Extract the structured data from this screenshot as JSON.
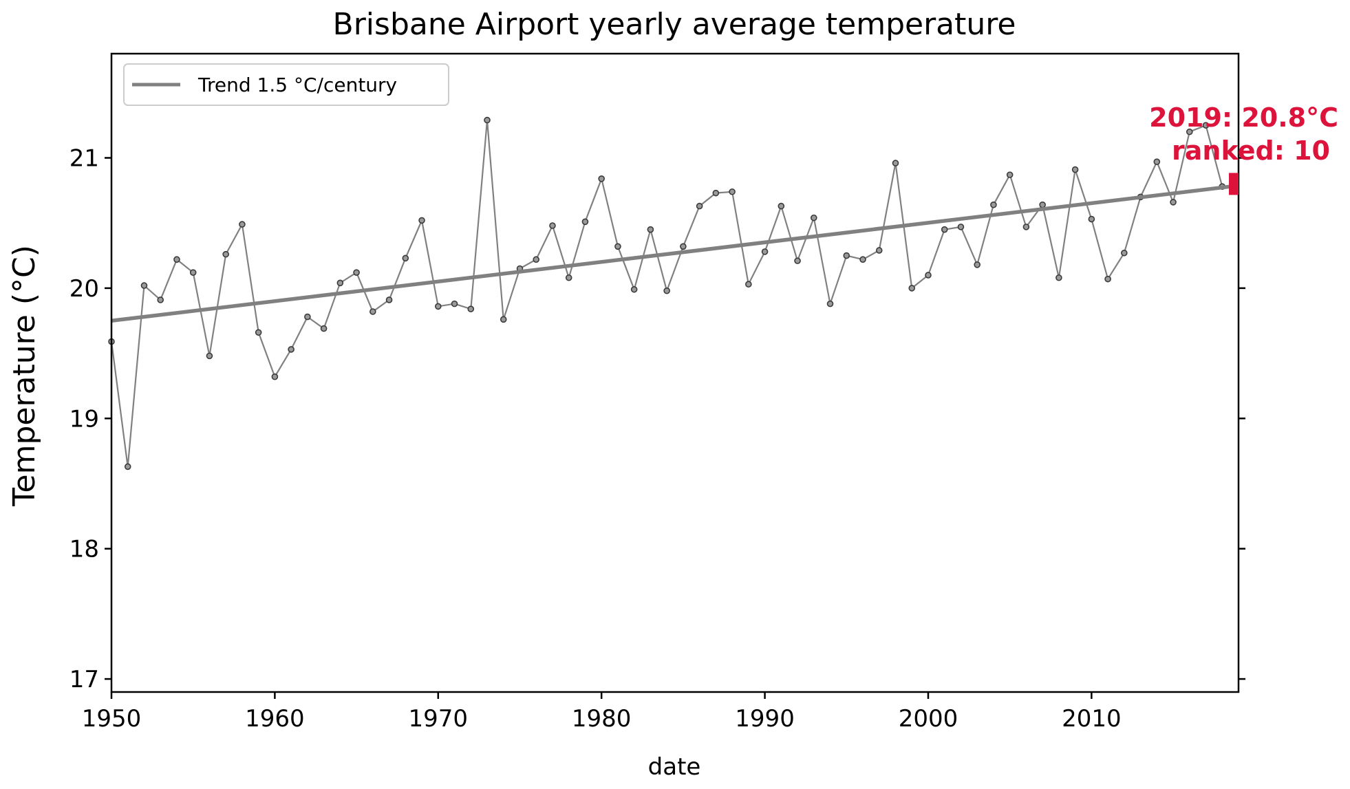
{
  "chart_data": {
    "type": "line",
    "title": "Brisbane Airport yearly average temperature",
    "xlabel": "date",
    "ylabel": "Temperature (°C)",
    "xlim": [
      1950,
      2019
    ],
    "ylim": [
      16.9,
      21.8
    ],
    "x_ticks": [
      1950,
      1960,
      1970,
      1980,
      1990,
      2000,
      2010
    ],
    "y_ticks": [
      17,
      18,
      19,
      20,
      21
    ],
    "legend": {
      "location": "upper left",
      "entries": [
        "Trend 1.5 °C/century"
      ]
    },
    "series": [
      {
        "x": [
          1950,
          1951,
          1952,
          1953,
          1954,
          1955,
          1956,
          1957,
          1958,
          1959,
          1960,
          1961,
          1962,
          1963,
          1964,
          1965,
          1966,
          1967,
          1968,
          1969,
          1970,
          1971,
          1972,
          1973,
          1974,
          1975,
          1976,
          1977,
          1978,
          1979,
          1980,
          1981,
          1982,
          1983,
          1984,
          1985,
          1986,
          1987,
          1988,
          1989,
          1990,
          1991,
          1992,
          1993,
          1994,
          1995,
          1996,
          1997,
          1998,
          1999,
          2000,
          2001,
          2002,
          2003,
          2004,
          2005,
          2006,
          2007,
          2008,
          2009,
          2010,
          2011,
          2012,
          2013,
          2014,
          2015,
          2016,
          2017,
          2018
        ],
        "values": [
          19.59,
          18.63,
          20.02,
          19.91,
          20.22,
          20.12,
          19.48,
          20.26,
          20.49,
          19.66,
          19.32,
          19.53,
          19.78,
          19.69,
          20.04,
          20.12,
          19.82,
          19.91,
          20.23,
          20.52,
          19.86,
          19.88,
          19.84,
          21.29,
          19.76,
          20.15,
          20.22,
          20.48,
          20.08,
          20.51,
          20.84,
          20.32,
          19.99,
          20.45,
          19.98,
          20.32,
          20.63,
          20.73,
          20.74,
          20.03,
          20.28,
          20.63,
          20.21,
          20.54,
          19.88,
          20.25,
          20.22,
          20.29,
          20.96,
          20.0,
          20.1,
          20.45,
          20.47,
          20.18,
          20.64,
          20.87,
          20.47,
          20.64,
          20.08,
          20.91,
          20.53,
          20.07,
          20.27,
          20.7,
          20.97,
          20.66,
          21.2,
          21.25,
          20.78
        ],
        "color": "#808080"
      },
      {
        "name": "Trend 1.5 °C/century",
        "type": "line",
        "x": [
          1950,
          2018.5
        ],
        "values": [
          19.75,
          20.78
        ],
        "color": "#808080"
      }
    ],
    "annotation": {
      "line1": "2019: 20.8°C",
      "line2": "ranked: 10",
      "x": 2019,
      "value": 20.8,
      "color": "#dc143c"
    }
  }
}
